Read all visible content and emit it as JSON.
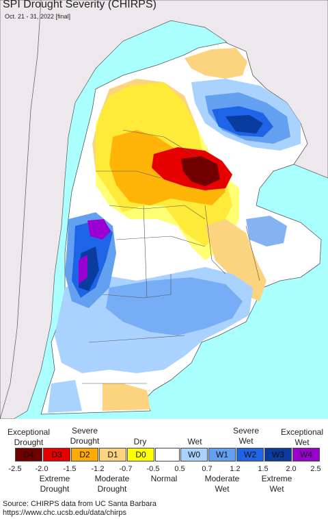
{
  "header": {
    "title": "SPI Drought Severity (CHIRPS)",
    "subtitle": "Oct. 21 - 31, 2022 [final]"
  },
  "legend": {
    "top_labels": [
      {
        "text": "Exceptional\nDrought"
      },
      {
        "text": "Severe\nDrought"
      },
      {
        "text": "Dry"
      },
      {
        "text": "Wet"
      },
      {
        "text": "Severe\nWet"
      },
      {
        "text": "Exceptional\nWet"
      }
    ],
    "classes": [
      {
        "code": "D4",
        "color": "#730000"
      },
      {
        "code": "D3",
        "color": "#e60000"
      },
      {
        "code": "D2",
        "color": "#ffaa00"
      },
      {
        "code": "D1",
        "color": "#fcd37f"
      },
      {
        "code": "D0",
        "color": "#ffff00"
      },
      {
        "code": "",
        "color": "#ffffff"
      },
      {
        "code": "W0",
        "color": "#aad2ff"
      },
      {
        "code": "W1",
        "color": "#64a0f0"
      },
      {
        "code": "W2",
        "color": "#1e64e6"
      },
      {
        "code": "W3",
        "color": "#0a3ca0"
      },
      {
        "code": "W4",
        "color": "#9b00d2"
      }
    ],
    "ticks": [
      "-2.5",
      "-2.0",
      "-1.5",
      "-1.2",
      "-0.7",
      "-0.5",
      "0.5",
      "0.7",
      "1.2",
      "1.5",
      "2.0",
      "2.5"
    ],
    "bottom_labels": [
      {
        "text": "Extreme\nDrought"
      },
      {
        "text": "Moderate\nDrought"
      },
      {
        "text": "Normal"
      },
      {
        "text": "Moderate\nWet"
      },
      {
        "text": "Extreme\nWet"
      }
    ]
  },
  "footer": {
    "source": "Source: CHIRPS data from UC Santa Barbara",
    "url": "https://www.chc.ucsb.edu/data/chirps"
  },
  "colors": {
    "ocean": "#aaffff",
    "outside_land": "#ece8ec",
    "border": "#555555"
  }
}
